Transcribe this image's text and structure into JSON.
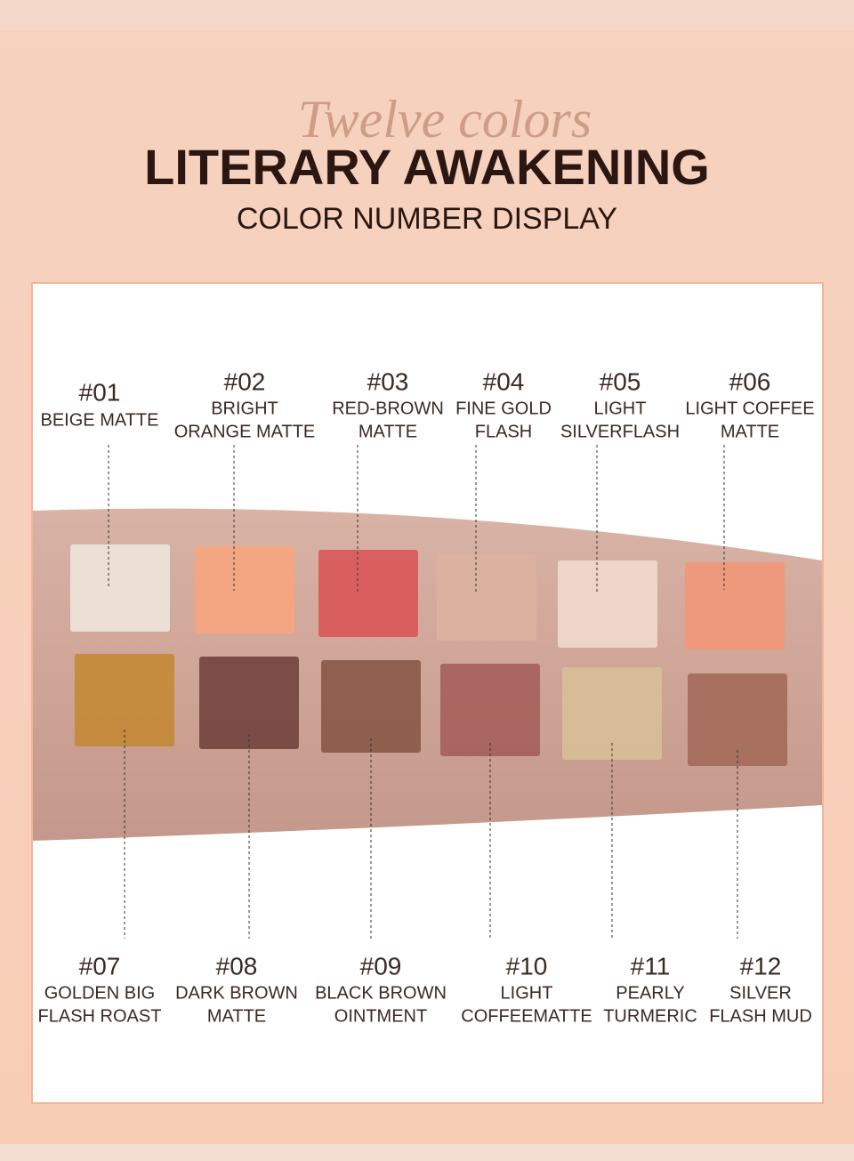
{
  "header": {
    "script": "Twelve colors",
    "title": "LITERARY AWAKENING",
    "subtitle": "COLOR NUMBER DISPLAY"
  },
  "swatches": [
    {
      "number": "#01",
      "name": [
        "BEIGE MATTE"
      ],
      "color": "#eee3d9"
    },
    {
      "number": "#02",
      "name": [
        "BRIGHT",
        "ORANGE MATTE"
      ],
      "color": "#f5a67f"
    },
    {
      "number": "#03",
      "name": [
        "RED-BROWN",
        "MATTE"
      ],
      "color": "#d9595a"
    },
    {
      "number": "#04",
      "name": [
        "FINE GOLD",
        "FLASH"
      ],
      "color": "#dcb1a0"
    },
    {
      "number": "#05",
      "name": [
        "LIGHT",
        "SILVERFLASH"
      ],
      "color": "#f0d8cc"
    },
    {
      "number": "#06",
      "name": [
        "LIGHT COFFEE",
        "MATTE"
      ],
      "color": "#f0977a"
    },
    {
      "number": "#07",
      "name": [
        "GOLDEN BIG",
        "FLASH ROAST"
      ],
      "color": "#c48938"
    },
    {
      "number": "#08",
      "name": [
        "DARK BROWN",
        "MATTE"
      ],
      "color": "#74463f"
    },
    {
      "number": "#09",
      "name": [
        "BLACK BROWN",
        "OINTMENT"
      ],
      "color": "#8a5a48"
    },
    {
      "number": "#10",
      "name": [
        "LIGHT",
        "COFFEEMATTE"
      ],
      "color": "#a7625d"
    },
    {
      "number": "#11",
      "name": [
        "PEARLY",
        "TURMERIC"
      ],
      "color": "#d6be98"
    },
    {
      "number": "#12",
      "name": [
        "SILVER",
        "FLASH MUD"
      ],
      "color": "#a56c5a"
    }
  ]
}
